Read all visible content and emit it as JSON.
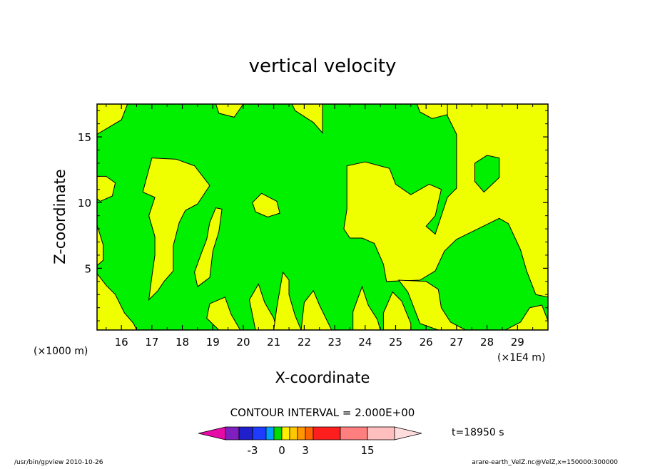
{
  "chart_data": {
    "type": "heatmap",
    "title": "vertical velocity",
    "xlabel": "X-coordinate",
    "ylabel": "Z-coordinate",
    "x_unit_label": "(×1E4 m)",
    "y_unit_label": "(×1000 m)",
    "xlim": [
      15.2,
      30.0
    ],
    "ylim": [
      0.3,
      17.5
    ],
    "x_ticks": [
      "16",
      "17",
      "18",
      "19",
      "20",
      "21",
      "22",
      "23",
      "24",
      "25",
      "26",
      "27",
      "28",
      "29"
    ],
    "y_ticks": [
      "5",
      "10",
      "15"
    ],
    "x_tick_values": [
      16,
      17,
      18,
      19,
      20,
      21,
      22,
      23,
      24,
      25,
      26,
      27,
      28,
      29
    ],
    "y_tick_values": [
      5,
      10,
      15
    ],
    "contour_interval_text": "CONTOUR INTERVAL = 2.000E+00",
    "colorbar": {
      "labels": [
        "-3",
        "0",
        "3",
        "15"
      ],
      "label_values": [
        -3,
        0,
        3,
        15
      ],
      "time_label": "t=18950 s",
      "colors": [
        "#e60aa6",
        "#7f1fbf",
        "#1f1fcc",
        "#1e3cff",
        "#00a0ff",
        "#00dc00",
        "#ffee00",
        "#ffc800",
        "#ff9600",
        "#ff6400",
        "#ff1e1e",
        "#ff7f7f",
        "#ffbfbf",
        "#ffdcdc"
      ],
      "segment_bounds": [
        -9,
        -7,
        -5,
        -3,
        -2,
        -1,
        0,
        1,
        2,
        3,
        5,
        10,
        15,
        20,
        25
      ]
    },
    "fill_colors": {
      "negative_small": "#00f000",
      "positive_small": "#f0ff00"
    },
    "regions": [
      {
        "sign": "positive",
        "poly": [
          [
            15.2,
            17.5
          ],
          [
            16.2,
            17.5
          ],
          [
            16.0,
            16.3
          ],
          [
            15.2,
            15.2
          ]
        ]
      },
      {
        "sign": "positive",
        "poly": [
          [
            19.1,
            17.5
          ],
          [
            20.0,
            17.5
          ],
          [
            19.7,
            16.5
          ],
          [
            19.2,
            16.8
          ]
        ]
      },
      {
        "sign": "positive",
        "poly": [
          [
            21.6,
            17.5
          ],
          [
            22.6,
            17.5
          ],
          [
            22.6,
            15.3
          ],
          [
            22.3,
            16.1
          ],
          [
            21.7,
            17.0
          ]
        ]
      },
      {
        "sign": "positive",
        "poly": [
          [
            25.7,
            17.5
          ],
          [
            27.3,
            17.5
          ],
          [
            27.2,
            16.5
          ],
          [
            26.7,
            16.7
          ],
          [
            26.2,
            16.4
          ],
          [
            25.8,
            16.9
          ]
        ]
      },
      {
        "sign": "positive",
        "poly": [
          [
            26.7,
            17.5
          ],
          [
            30.0,
            17.5
          ],
          [
            30.0,
            2.8
          ],
          [
            29.6,
            3.0
          ],
          [
            29.3,
            4.8
          ],
          [
            29.1,
            6.4
          ],
          [
            28.7,
            8.4
          ],
          [
            28.4,
            8.8
          ],
          [
            27.7,
            8.0
          ],
          [
            27.0,
            7.2
          ],
          [
            26.6,
            6.3
          ],
          [
            26.3,
            4.8
          ],
          [
            25.8,
            4.1
          ],
          [
            24.7,
            4.0
          ],
          [
            24.6,
            5.3
          ],
          [
            24.3,
            6.9
          ],
          [
            23.9,
            7.3
          ],
          [
            23.5,
            7.3
          ],
          [
            23.3,
            8.0
          ],
          [
            23.4,
            9.5
          ],
          [
            23.4,
            12.8
          ],
          [
            24.0,
            13.1
          ],
          [
            24.8,
            12.6
          ],
          [
            25.0,
            11.4
          ],
          [
            25.5,
            10.6
          ],
          [
            26.1,
            11.4
          ],
          [
            26.5,
            11.0
          ],
          [
            26.3,
            9.0
          ],
          [
            26.0,
            8.2
          ],
          [
            26.3,
            7.6
          ],
          [
            26.7,
            10.4
          ],
          [
            27.0,
            11.1
          ],
          [
            27.0,
            15.2
          ],
          [
            26.7,
            16.6
          ]
        ]
      },
      {
        "sign": "negative",
        "poly": [
          [
            27.6,
            13.0
          ],
          [
            28.0,
            13.6
          ],
          [
            28.4,
            13.4
          ],
          [
            28.4,
            11.9
          ],
          [
            27.9,
            10.8
          ],
          [
            27.6,
            11.6
          ]
        ]
      },
      {
        "sign": "positive",
        "poly": [
          [
            15.2,
            12.0
          ],
          [
            15.5,
            12.0
          ],
          [
            15.8,
            11.5
          ],
          [
            15.7,
            10.5
          ],
          [
            15.3,
            10.1
          ],
          [
            15.2,
            10.3
          ]
        ]
      },
      {
        "sign": "positive",
        "poly": [
          [
            16.7,
            10.8
          ],
          [
            17.0,
            13.4
          ],
          [
            17.8,
            13.3
          ],
          [
            18.4,
            12.8
          ],
          [
            18.9,
            11.3
          ],
          [
            18.5,
            9.9
          ],
          [
            18.1,
            9.4
          ],
          [
            17.9,
            8.5
          ],
          [
            17.7,
            6.7
          ],
          [
            17.7,
            4.8
          ],
          [
            17.4,
            4.0
          ],
          [
            17.2,
            3.3
          ],
          [
            16.9,
            2.6
          ],
          [
            17.0,
            4.4
          ],
          [
            17.1,
            6.0
          ],
          [
            17.1,
            7.4
          ],
          [
            16.9,
            9.0
          ],
          [
            17.1,
            10.4
          ]
        ]
      },
      {
        "sign": "positive",
        "poly": [
          [
            20.3,
            10.0
          ],
          [
            20.6,
            10.7
          ],
          [
            21.1,
            10.1
          ],
          [
            21.2,
            9.2
          ],
          [
            20.8,
            8.9
          ],
          [
            20.4,
            9.3
          ]
        ]
      },
      {
        "sign": "positive",
        "poly": [
          [
            15.2,
            4.6
          ],
          [
            15.5,
            3.7
          ],
          [
            15.8,
            3.0
          ],
          [
            16.1,
            1.6
          ],
          [
            16.4,
            0.8
          ],
          [
            16.5,
            0.3
          ],
          [
            15.2,
            0.3
          ]
        ]
      },
      {
        "sign": "positive",
        "poly": [
          [
            15.2,
            8.3
          ],
          [
            15.4,
            6.8
          ],
          [
            15.4,
            5.6
          ],
          [
            15.2,
            5.2
          ]
        ]
      },
      {
        "sign": "positive",
        "poly": [
          [
            18.9,
            8.5
          ],
          [
            19.1,
            9.6
          ],
          [
            19.3,
            9.5
          ],
          [
            19.2,
            7.8
          ],
          [
            19.0,
            6.3
          ],
          [
            18.9,
            4.3
          ],
          [
            18.5,
            3.6
          ],
          [
            18.4,
            4.7
          ],
          [
            18.6,
            6.0
          ],
          [
            18.8,
            7.2
          ]
        ]
      },
      {
        "sign": "positive",
        "poly": [
          [
            18.9,
            2.3
          ],
          [
            19.4,
            2.8
          ],
          [
            19.6,
            1.5
          ],
          [
            19.9,
            0.3
          ],
          [
            19.2,
            0.3
          ],
          [
            18.8,
            1.2
          ]
        ]
      },
      {
        "sign": "positive",
        "poly": [
          [
            20.2,
            2.6
          ],
          [
            20.5,
            3.8
          ],
          [
            20.7,
            2.4
          ],
          [
            21.0,
            1.2
          ],
          [
            21.1,
            0.3
          ],
          [
            20.4,
            0.3
          ]
        ]
      },
      {
        "sign": "positive",
        "poly": [
          [
            21.1,
            2.0
          ],
          [
            21.3,
            4.7
          ],
          [
            21.5,
            4.1
          ],
          [
            21.5,
            3.0
          ],
          [
            21.7,
            1.4
          ],
          [
            21.9,
            0.3
          ],
          [
            21.0,
            0.3
          ]
        ]
      },
      {
        "sign": "positive",
        "poly": [
          [
            22.0,
            2.4
          ],
          [
            22.3,
            3.3
          ],
          [
            22.5,
            2.2
          ],
          [
            22.9,
            0.3
          ],
          [
            21.9,
            0.3
          ]
        ]
      },
      {
        "sign": "positive",
        "poly": [
          [
            23.6,
            1.7
          ],
          [
            23.9,
            3.6
          ],
          [
            24.1,
            2.2
          ],
          [
            24.4,
            1.1
          ],
          [
            24.5,
            0.3
          ],
          [
            23.6,
            0.3
          ]
        ]
      },
      {
        "sign": "positive",
        "poly": [
          [
            24.6,
            1.6
          ],
          [
            24.9,
            3.2
          ],
          [
            25.2,
            2.5
          ],
          [
            25.5,
            0.8
          ],
          [
            25.5,
            0.3
          ],
          [
            24.6,
            0.3
          ]
        ]
      },
      {
        "sign": "positive",
        "poly": [
          [
            25.1,
            4.1
          ],
          [
            25.4,
            3.2
          ],
          [
            25.6,
            2.0
          ],
          [
            25.8,
            0.8
          ],
          [
            26.4,
            0.3
          ],
          [
            27.3,
            0.3
          ],
          [
            26.8,
            0.9
          ],
          [
            26.5,
            2.0
          ],
          [
            26.4,
            3.4
          ],
          [
            26.0,
            4.0
          ]
        ]
      },
      {
        "sign": "positive",
        "poly": [
          [
            28.6,
            0.3
          ],
          [
            30.0,
            0.3
          ],
          [
            30.0,
            1.0
          ],
          [
            29.8,
            2.2
          ],
          [
            29.4,
            2.0
          ],
          [
            29.1,
            0.9
          ]
        ]
      }
    ],
    "note_marks": "approximate contour regions"
  },
  "footer": {
    "left": "/usr/bin/gpview  2010-10-26",
    "right": "arare-earth_VelZ.nc@VelZ,x=150000:300000"
  }
}
